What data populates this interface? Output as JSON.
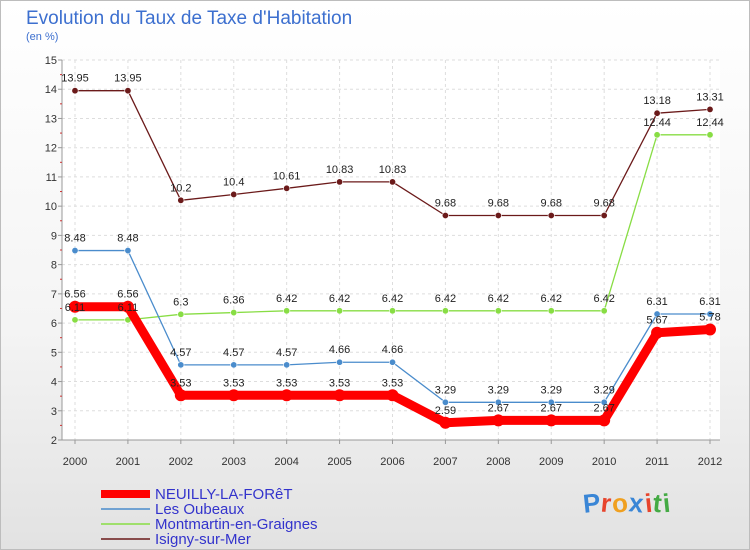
{
  "chart_data": {
    "type": "line",
    "title": "Evolution du Taux de Taxe d'Habitation",
    "subtitle": "(en %)",
    "x": [
      "2000",
      "2001",
      "2002",
      "2003",
      "2004",
      "2005",
      "2006",
      "2007",
      "2008",
      "2009",
      "2010",
      "2011",
      "2012"
    ],
    "ylim": [
      2,
      15
    ],
    "yticks": [
      2,
      3,
      4,
      5,
      6,
      7,
      8,
      9,
      10,
      11,
      12,
      13,
      14,
      15
    ],
    "grid": true,
    "legend_position": "bottom-left",
    "series": [
      {
        "name": "NEUILLY-LA-FORêT",
        "color": "#ff0000",
        "values": [
          6.56,
          6.56,
          3.53,
          3.53,
          3.53,
          3.53,
          3.53,
          2.59,
          2.67,
          2.67,
          2.67,
          5.67,
          5.78
        ],
        "labels": [
          "6.56",
          "6.56",
          "3.53",
          "3.53",
          "3.53",
          "3.53",
          "3.53",
          "2.59",
          "2.67",
          "2.67",
          "2.67",
          "5.67",
          "5.78"
        ]
      },
      {
        "name": "Les Oubeaux",
        "color": "#4a8ccc",
        "values": [
          8.48,
          8.48,
          4.57,
          4.57,
          4.57,
          4.66,
          4.66,
          3.29,
          3.29,
          3.29,
          3.29,
          6.31,
          6.31
        ],
        "labels": [
          "8.48",
          "8.48",
          "4.57",
          "4.57",
          "4.57",
          "4.66",
          "4.66",
          "3.29",
          "3.29",
          "3.29",
          "3.29",
          "6.31",
          "6.31"
        ]
      },
      {
        "name": "Montmartin-en-Graignes",
        "color": "#88dd44",
        "values": [
          6.11,
          6.11,
          6.3,
          6.36,
          6.42,
          6.42,
          6.42,
          6.42,
          6.42,
          6.42,
          6.42,
          12.44,
          12.44
        ],
        "labels": [
          "6.11",
          "6.11",
          "6.3",
          "6.36",
          "6.42",
          "6.42",
          "6.42",
          "6.42",
          "6.42",
          "6.42",
          "6.42",
          "12.44",
          "12.44"
        ]
      },
      {
        "name": "Isigny-sur-Mer",
        "color": "#6b1a1a",
        "values": [
          13.95,
          13.95,
          10.2,
          10.4,
          10.61,
          10.83,
          10.83,
          9.68,
          9.68,
          9.68,
          9.68,
          13.18,
          13.31
        ],
        "labels": [
          "13.95",
          "13.95",
          "10.2",
          "10.4",
          "10.61",
          "10.83",
          "10.83",
          "9.68",
          "9.68",
          "9.68",
          "9.68",
          "13.18",
          "13.31"
        ]
      }
    ]
  },
  "logo": {
    "letters": [
      "P",
      "r",
      "o",
      "x",
      "i",
      "t",
      "i"
    ],
    "colors": [
      "#3a86d6",
      "#e7442c",
      "#f0a020",
      "#3a86d6",
      "#e7442c",
      "#44aa44",
      "#44aa44"
    ]
  }
}
